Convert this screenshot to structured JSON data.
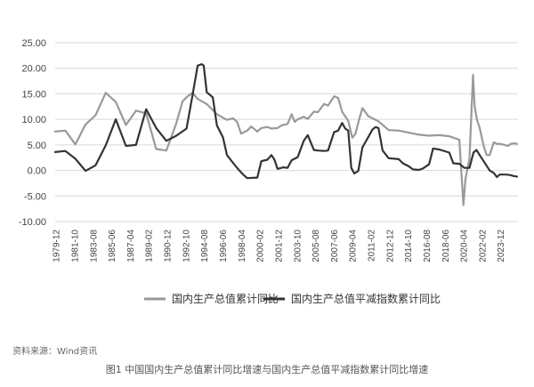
{
  "source_note": "资料来源：Wind资讯",
  "caption": "图1  中国国内生产总值累计同比增速与国内生产总值平减指数累计同比增速",
  "chart_data": {
    "type": "line",
    "ylim": [
      -10,
      25
    ],
    "yticks": [
      "25.00",
      "20.00",
      "15.00",
      "10.00",
      "5.00",
      "0.00",
      "-5.00",
      "-10.00"
    ],
    "xticks": [
      "1979-12",
      "1981-10",
      "1983-08",
      "1985-06",
      "1987-04",
      "1989-02",
      "1990-12",
      "1992-10",
      "1994-08",
      "1996-06",
      "1998-04",
      "2000-02",
      "2001-12",
      "2003-10",
      "2005-08",
      "2007-06",
      "2009-04",
      "2011-02",
      "2012-12",
      "2014-10",
      "2016-08",
      "2018-06",
      "2020-04",
      "2022-02",
      "2023-12"
    ],
    "legend_position": "bottom",
    "series": [
      {
        "name": "国内生产总值累计同比",
        "color": "#999999",
        "points": [
          [
            1979.9,
            7.6
          ],
          [
            1980.9,
            7.8
          ],
          [
            1981.9,
            5.1
          ],
          [
            1982.9,
            9.0
          ],
          [
            1983.9,
            10.8
          ],
          [
            1984.9,
            15.2
          ],
          [
            1985.9,
            13.4
          ],
          [
            1986.9,
            8.9
          ],
          [
            1987.9,
            11.7
          ],
          [
            1988.9,
            11.2
          ],
          [
            1989.9,
            4.2
          ],
          [
            1990.9,
            3.9
          ],
          [
            1991.9,
            9.3
          ],
          [
            1992.5,
            13.5
          ],
          [
            1993.0,
            14.5
          ],
          [
            1993.5,
            15.2
          ],
          [
            1994.0,
            14.0
          ],
          [
            1994.9,
            13.0
          ],
          [
            1995.9,
            11.0
          ],
          [
            1996.9,
            9.9
          ],
          [
            1997.5,
            10.2
          ],
          [
            1997.9,
            9.5
          ],
          [
            1998.3,
            7.2
          ],
          [
            1998.9,
            7.8
          ],
          [
            1999.3,
            8.6
          ],
          [
            1999.9,
            7.6
          ],
          [
            2000.3,
            8.3
          ],
          [
            2000.9,
            8.5
          ],
          [
            2001.3,
            8.2
          ],
          [
            2001.9,
            8.3
          ],
          [
            2002.3,
            8.8
          ],
          [
            2002.9,
            9.1
          ],
          [
            2003.3,
            11.0
          ],
          [
            2003.6,
            9.5
          ],
          [
            2003.9,
            10.0
          ],
          [
            2004.5,
            10.5
          ],
          [
            2004.9,
            10.1
          ],
          [
            2005.5,
            11.5
          ],
          [
            2005.9,
            11.4
          ],
          [
            2006.5,
            13.0
          ],
          [
            2006.9,
            12.7
          ],
          [
            2007.5,
            14.5
          ],
          [
            2007.9,
            14.2
          ],
          [
            2008.3,
            11.5
          ],
          [
            2008.9,
            9.7
          ],
          [
            2009.3,
            6.4
          ],
          [
            2009.6,
            7.1
          ],
          [
            2009.9,
            9.4
          ],
          [
            2010.3,
            12.2
          ],
          [
            2010.9,
            10.6
          ],
          [
            2011.9,
            9.6
          ],
          [
            2012.9,
            7.9
          ],
          [
            2013.9,
            7.8
          ],
          [
            2014.9,
            7.4
          ],
          [
            2015.9,
            7.0
          ],
          [
            2016.9,
            6.8
          ],
          [
            2017.9,
            6.9
          ],
          [
            2018.9,
            6.7
          ],
          [
            2019.9,
            6.0
          ],
          [
            2020.3,
            -6.8
          ],
          [
            2020.5,
            -1.6
          ],
          [
            2020.9,
            2.3
          ],
          [
            2021.25,
            18.7
          ],
          [
            2021.4,
            12.7
          ],
          [
            2021.65,
            9.8
          ],
          [
            2021.9,
            8.4
          ],
          [
            2022.3,
            4.8
          ],
          [
            2022.6,
            3.0
          ],
          [
            2022.9,
            3.0
          ],
          [
            2023.3,
            5.5
          ],
          [
            2023.6,
            5.2
          ],
          [
            2023.9,
            5.2
          ],
          [
            2024.4,
            5.0
          ],
          [
            2024.7,
            4.8
          ],
          [
            2025.0,
            5.2
          ],
          [
            2025.3,
            5.3
          ],
          [
            2025.6,
            5.2
          ]
        ]
      },
      {
        "name": "国内生产总值平减指数累计同比",
        "color": "#333333",
        "points": [
          [
            1979.9,
            3.6
          ],
          [
            1980.9,
            3.8
          ],
          [
            1981.9,
            2.3
          ],
          [
            1982.9,
            -0.1
          ],
          [
            1983.9,
            1.0
          ],
          [
            1984.9,
            4.9
          ],
          [
            1985.9,
            10.0
          ],
          [
            1986.9,
            4.8
          ],
          [
            1987.9,
            5.0
          ],
          [
            1988.9,
            12.0
          ],
          [
            1989.9,
            8.3
          ],
          [
            1990.9,
            5.8
          ],
          [
            1991.9,
            6.8
          ],
          [
            1992.9,
            8.2
          ],
          [
            1993.5,
            14.8
          ],
          [
            1994.0,
            20.5
          ],
          [
            1994.4,
            20.8
          ],
          [
            1994.6,
            20.5
          ],
          [
            1994.9,
            15.3
          ],
          [
            1995.5,
            14.3
          ],
          [
            1995.9,
            8.8
          ],
          [
            1996.5,
            6.5
          ],
          [
            1996.9,
            3.0
          ],
          [
            1997.5,
            1.5
          ],
          [
            1997.9,
            0.5
          ],
          [
            1998.5,
            -0.8
          ],
          [
            1998.9,
            -1.5
          ],
          [
            1999.9,
            -1.4
          ],
          [
            2000.3,
            1.8
          ],
          [
            2000.9,
            2.1
          ],
          [
            2001.3,
            3.0
          ],
          [
            2001.6,
            2.1
          ],
          [
            2001.9,
            0.3
          ],
          [
            2002.5,
            0.6
          ],
          [
            2002.9,
            0.5
          ],
          [
            2003.3,
            2.0
          ],
          [
            2003.9,
            2.6
          ],
          [
            2004.5,
            5.8
          ],
          [
            2004.9,
            6.9
          ],
          [
            2005.5,
            4.0
          ],
          [
            2005.9,
            3.9
          ],
          [
            2006.5,
            3.8
          ],
          [
            2006.9,
            3.9
          ],
          [
            2007.5,
            7.5
          ],
          [
            2007.9,
            7.8
          ],
          [
            2008.3,
            9.3
          ],
          [
            2008.6,
            8.2
          ],
          [
            2008.9,
            7.8
          ],
          [
            2009.2,
            0.5
          ],
          [
            2009.5,
            -0.6
          ],
          [
            2009.9,
            -0.1
          ],
          [
            2010.3,
            4.5
          ],
          [
            2010.9,
            6.6
          ],
          [
            2011.3,
            8.0
          ],
          [
            2011.6,
            8.5
          ],
          [
            2011.9,
            8.3
          ],
          [
            2012.3,
            3.9
          ],
          [
            2012.9,
            2.4
          ],
          [
            2013.9,
            2.2
          ],
          [
            2014.3,
            1.4
          ],
          [
            2014.9,
            0.8
          ],
          [
            2015.3,
            0.2
          ],
          [
            2015.9,
            0.1
          ],
          [
            2016.3,
            0.4
          ],
          [
            2016.9,
            1.2
          ],
          [
            2017.3,
            4.3
          ],
          [
            2017.9,
            4.1
          ],
          [
            2018.9,
            3.5
          ],
          [
            2019.3,
            1.4
          ],
          [
            2019.9,
            1.3
          ],
          [
            2020.4,
            0.5
          ],
          [
            2020.9,
            0.5
          ],
          [
            2021.3,
            3.5
          ],
          [
            2021.6,
            4.0
          ],
          [
            2021.9,
            3.0
          ],
          [
            2022.5,
            1.2
          ],
          [
            2022.9,
            0.0
          ],
          [
            2023.3,
            -0.5
          ],
          [
            2023.6,
            -1.3
          ],
          [
            2023.9,
            -0.8
          ],
          [
            2024.5,
            -0.8
          ],
          [
            2024.9,
            -0.9
          ],
          [
            2025.3,
            -1.1
          ],
          [
            2025.6,
            -1.2
          ]
        ]
      }
    ]
  }
}
